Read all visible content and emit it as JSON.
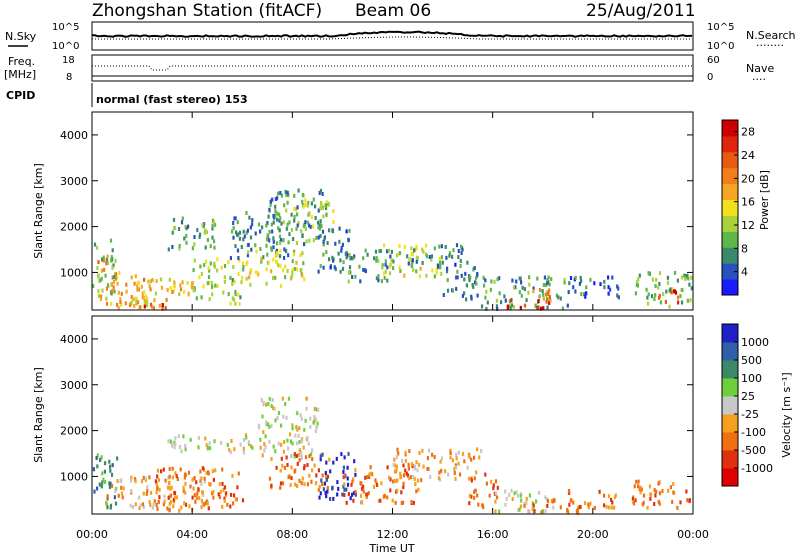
{
  "header": {
    "title": "Zhongshan Station (fitACF)",
    "beam": "Beam 06",
    "date": "25/Aug/2011"
  },
  "noise_panel": {
    "left_label": "N.Sky",
    "left_ticks": [
      "10^5",
      "10^0"
    ],
    "right_label": "N.Search",
    "right_ticks": [
      "10^5",
      "10^0"
    ],
    "legend_dots": "........"
  },
  "freq_panel": {
    "left_label_1": "Freq.",
    "left_label_2": "[MHz]",
    "left_ticks": [
      "18",
      "8"
    ],
    "right_label": "Nave",
    "right_ticks": [
      "60",
      "0"
    ],
    "legend_dots": "....",
    "cpid_label": "CPID",
    "cpid_value": "normal (fast stereo) 153"
  },
  "time_axis": {
    "label": "Time UT",
    "ticks": [
      "00:00",
      "04:00",
      "08:00",
      "12:00",
      "16:00",
      "20:00",
      "00:00"
    ]
  },
  "chart_data": [
    {
      "type": "heatmap",
      "title": "",
      "xlabel": "Time UT",
      "ylabel": "Slant Range [km]",
      "xlim": [
        0,
        24
      ],
      "ylim": [
        180,
        4500
      ],
      "yticks": [
        "1000",
        "2000",
        "3000",
        "4000"
      ],
      "colorbar": {
        "label": "Power [dB]",
        "ticks": [
          "4",
          "8",
          "12",
          "16",
          "20",
          "24",
          "28"
        ],
        "range": [
          0,
          30
        ],
        "colors": [
          "#1a1aff",
          "#2950c0",
          "#3a8a6a",
          "#5fb64a",
          "#a8d23a",
          "#f2e020",
          "#f5a623",
          "#f07f1a",
          "#e85a10",
          "#e0220e",
          "#cc0000"
        ]
      },
      "blobs": [
        {
          "t0": 0.0,
          "t1": 0.9,
          "r0": 300,
          "r1": 1700,
          "v": 10
        },
        {
          "t0": 0.3,
          "t1": 2.4,
          "r0": 220,
          "r1": 1000,
          "v": 18
        },
        {
          "t0": 1.5,
          "t1": 4.0,
          "r0": 250,
          "r1": 900,
          "v": 16
        },
        {
          "t0": 2.0,
          "t1": 3.0,
          "r0": 200,
          "r1": 450,
          "v": 24
        },
        {
          "t0": 0.2,
          "t1": 0.7,
          "r0": 1000,
          "r1": 1400,
          "v": 20
        },
        {
          "t0": 4.0,
          "t1": 6.0,
          "r0": 300,
          "r1": 1300,
          "v": 12
        },
        {
          "t0": 3.0,
          "t1": 5.0,
          "r0": 1500,
          "r1": 2200,
          "v": 8
        },
        {
          "t0": 5.5,
          "t1": 8.0,
          "r0": 1300,
          "r1": 2300,
          "v": 7
        },
        {
          "t0": 6.0,
          "t1": 8.5,
          "r0": 700,
          "r1": 1500,
          "v": 14
        },
        {
          "t0": 7.0,
          "t1": 9.5,
          "r0": 1600,
          "r1": 2800,
          "v": 8
        },
        {
          "t0": 8.0,
          "t1": 9.6,
          "r0": 2000,
          "r1": 2600,
          "v": 12
        },
        {
          "t0": 9.0,
          "t1": 10.5,
          "r0": 1000,
          "r1": 2000,
          "v": 6
        },
        {
          "t0": 10.0,
          "t1": 12.0,
          "r0": 800,
          "r1": 1500,
          "v": 8
        },
        {
          "t0": 11.5,
          "t1": 14.0,
          "r0": 900,
          "r1": 1600,
          "v": 13
        },
        {
          "t0": 12.5,
          "t1": 15.0,
          "r0": 1100,
          "r1": 1600,
          "v": 7
        },
        {
          "t0": 14.0,
          "t1": 15.5,
          "r0": 400,
          "r1": 1200,
          "v": 6
        },
        {
          "t0": 15.5,
          "t1": 19.0,
          "r0": 200,
          "r1": 900,
          "v": 8
        },
        {
          "t0": 16.4,
          "t1": 18.3,
          "r0": 200,
          "r1": 400,
          "v": 27
        },
        {
          "t0": 17.5,
          "t1": 18.5,
          "r0": 350,
          "r1": 650,
          "v": 19
        },
        {
          "t0": 19.0,
          "t1": 21.0,
          "r0": 400,
          "r1": 900,
          "v": 5
        },
        {
          "t0": 21.5,
          "t1": 24.0,
          "r0": 250,
          "r1": 1000,
          "v": 10
        },
        {
          "t0": 22.5,
          "t1": 23.5,
          "r0": 300,
          "r1": 600,
          "v": 24
        }
      ]
    },
    {
      "type": "heatmap",
      "title": "",
      "xlabel": "Time UT",
      "ylabel": "Slant Range [km]",
      "xlim": [
        0,
        24
      ],
      "ylim": [
        180,
        4500
      ],
      "yticks": [
        "1000",
        "2000",
        "3000",
        "4000"
      ],
      "colorbar": {
        "label": "Velocity [m s⁻¹]",
        "ticks": [
          "1000",
          "500",
          "100",
          "25",
          "-25",
          "-100",
          "-500",
          "-1000"
        ],
        "colors": [
          "#2020c8",
          "#2f5fa8",
          "#3a8a6a",
          "#6fcf3a",
          "#c8c8c8",
          "#f5a020",
          "#f07010",
          "#e03010",
          "#e00000"
        ]
      },
      "blobs": [
        {
          "t0": 0.0,
          "t1": 1.0,
          "r0": 300,
          "r1": 1500,
          "v": 2
        },
        {
          "t0": 0.5,
          "t1": 4.5,
          "r0": 250,
          "r1": 1000,
          "v": 5
        },
        {
          "t0": 2.5,
          "t1": 6.0,
          "r0": 300,
          "r1": 1200,
          "v": 6
        },
        {
          "t0": 3.0,
          "t1": 6.5,
          "r0": 1500,
          "r1": 1900,
          "v": 4
        },
        {
          "t0": 6.5,
          "t1": 9.0,
          "r0": 1400,
          "r1": 2700,
          "v": 4
        },
        {
          "t0": 7.0,
          "t1": 9.5,
          "r0": 700,
          "r1": 1500,
          "v": 6
        },
        {
          "t0": 9.0,
          "t1": 10.5,
          "r0": 500,
          "r1": 1500,
          "v": 0
        },
        {
          "t0": 10.0,
          "t1": 13.0,
          "r0": 400,
          "r1": 1300,
          "v": 6
        },
        {
          "t0": 12.0,
          "t1": 15.5,
          "r0": 900,
          "r1": 1600,
          "v": 5
        },
        {
          "t0": 15.0,
          "t1": 16.2,
          "r0": 300,
          "r1": 1100,
          "v": 6
        },
        {
          "t0": 16.0,
          "t1": 18.5,
          "r0": 200,
          "r1": 700,
          "v": 4
        },
        {
          "t0": 17.0,
          "t1": 19.5,
          "r0": 200,
          "r1": 500,
          "v": 6
        },
        {
          "t0": 19.0,
          "t1": 21.0,
          "r0": 300,
          "r1": 700,
          "v": 6
        },
        {
          "t0": 21.5,
          "t1": 24.0,
          "r0": 250,
          "r1": 900,
          "v": 6
        }
      ]
    }
  ]
}
